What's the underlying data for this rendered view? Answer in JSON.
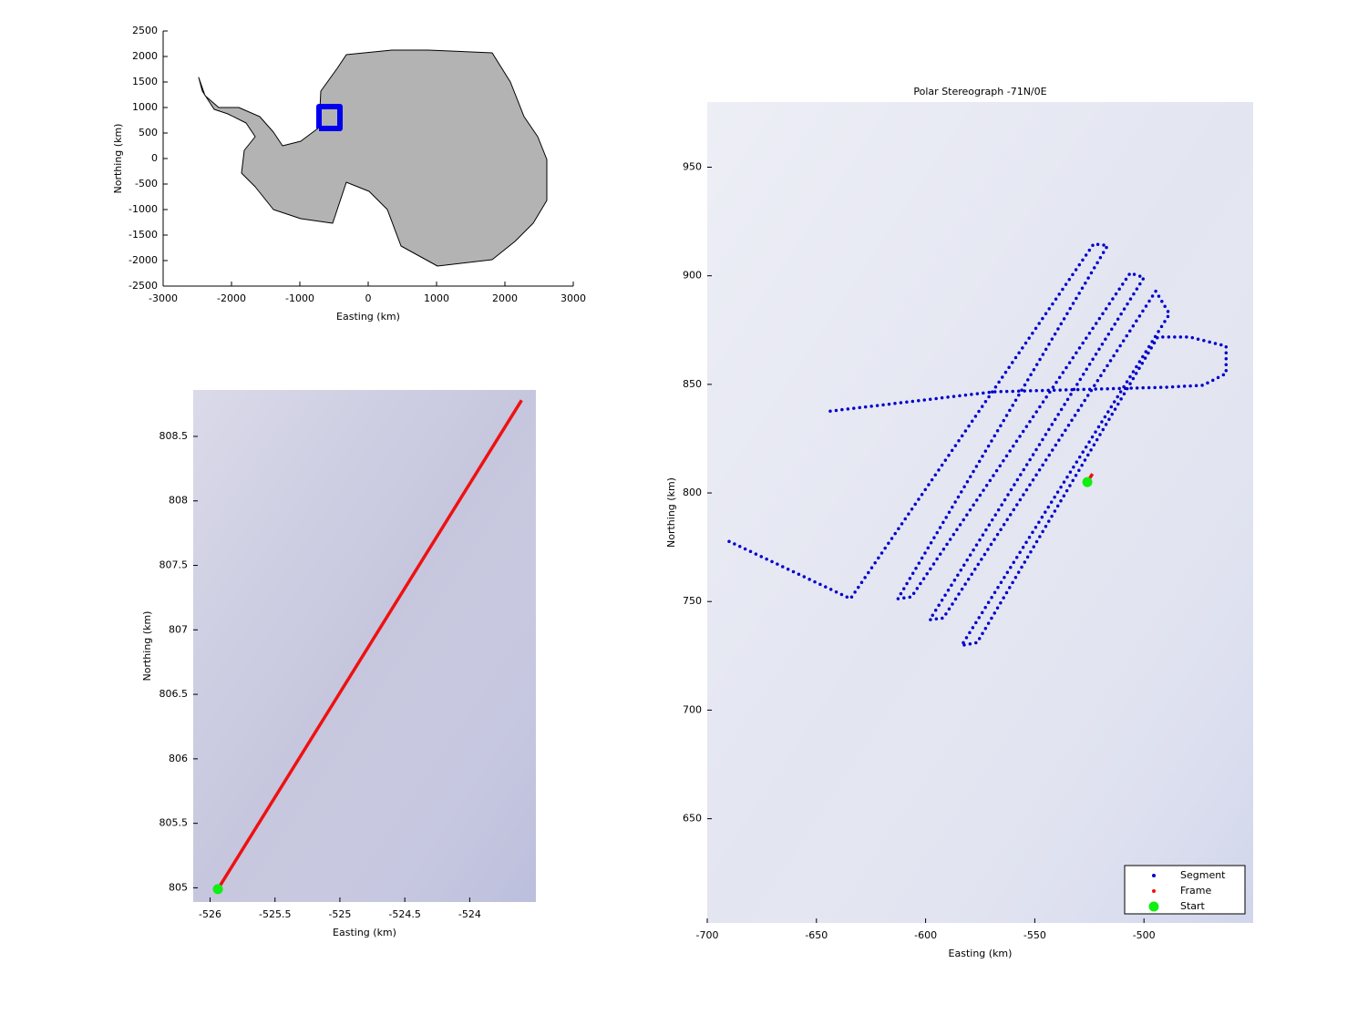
{
  "chart_data": [
    {
      "type": "map",
      "xlabel": "Easting (km)",
      "ylabel": "Northing (km)",
      "xlim": [
        -3000,
        3000
      ],
      "ylim": [
        -2500,
        2500
      ],
      "xticks": [
        -3000,
        -2000,
        -1000,
        0,
        1000,
        2000,
        3000
      ],
      "yticks": [
        -2500,
        -2000,
        -1500,
        -1000,
        -500,
        0,
        500,
        1000,
        1500,
        2000,
        2500
      ],
      "box": false,
      "background": "#ffffff",
      "series": [
        {
          "color": "#b3b3b3",
          "style": "fill",
          "x": [
            -2480,
            -2387,
            -2187,
            -1893,
            -1587,
            -1387,
            -1253,
            -987,
            -720,
            -693,
            -453,
            -320,
            347,
            880,
            1813,
            2080,
            2280,
            2480,
            2613,
            2613,
            2413,
            2147,
            1813,
            1013,
            480,
            280,
            13,
            -320,
            -520,
            -987,
            -1387,
            -1653,
            -1853,
            -1813,
            -1653,
            -1787,
            -2053,
            -2253,
            -2427
          ],
          "values": [
            1590,
            1232,
            1000,
            1000,
            821,
            518,
            250,
            339,
            607,
            1321,
            1768,
            2036,
            2125,
            2125,
            2071,
            1500,
            821,
            429,
            -18,
            -821,
            -1268,
            -1625,
            -1982,
            -2107,
            -1714,
            -1000,
            -643,
            -464,
            -1268,
            -1179,
            -1000,
            -554,
            -286,
            161,
            429,
            696,
            875,
            964,
            1321
          ]
        },
        {
          "color": "#0000ee",
          "style": "thick",
          "x": [
            -720,
            -413,
            -413,
            -720,
            -720
          ],
          "values": [
            590,
            590,
            1018,
            1018,
            590
          ]
        }
      ]
    },
    {
      "type": "map",
      "xlabel": "Easting (km)",
      "ylabel": "Northing (km)",
      "xlim": [
        -526.13,
        -523.49
      ],
      "ylim": [
        804.89,
        808.86
      ],
      "xticks": [
        -526,
        -525.5,
        -525,
        -524.5,
        -524
      ],
      "yticks": [
        805,
        805.5,
        806,
        806.5,
        807,
        807.5,
        808,
        808.5
      ],
      "box": true,
      "background": "#c6c6de",
      "series": [
        {
          "color": "#ee1111",
          "style": "line",
          "x": [
            -525.94,
            -523.6
          ],
          "values": [
            804.99,
            808.78
          ]
        },
        {
          "color": "#11ee11",
          "style": "marker",
          "x": [
            -525.94
          ],
          "values": [
            804.99
          ]
        }
      ]
    },
    {
      "type": "map",
      "title": "Polar Stereograph -71N/0E",
      "xlabel": "Easting (km)",
      "ylabel": "Northing (km)",
      "xlim": [
        -700,
        -450
      ],
      "ylim": [
        602,
        980
      ],
      "xticks": [
        -700,
        -650,
        -600,
        -550,
        -500
      ],
      "yticks": [
        650,
        700,
        750,
        800,
        850,
        900,
        950
      ],
      "box": true,
      "background": "#e3e5f1",
      "legend": "lower right",
      "series": [
        {
          "name": "Segment",
          "color": "#0000cc",
          "style": "dots",
          "x": [
            -690.0,
            -634.4,
            -523.0,
            -516.7,
            -612.7,
            -606.5,
            -506.3,
            -500.0,
            -598.1,
            -591.9,
            -494.6,
            -488.3,
            -583.5,
            -576.4,
            -493.7,
            -479.1,
            -462.4,
            -462.4,
            -472.9,
            -489.6,
            -568.9,
            -646.1
          ],
          "values": [
            777.7,
            751.3,
            914.7,
            913.9,
            751.3,
            752.1,
            901.3,
            899.2,
            741.6,
            742.4,
            892.9,
            882.4,
            729.8,
            731.1,
            871.8,
            871.8,
            867.6,
            855.0,
            849.6,
            848.7,
            846.6,
            837.4
          ]
        },
        {
          "name": "Frame",
          "color": "#ee1111",
          "style": "line",
          "x": [
            -525.94,
            -523.6
          ],
          "values": [
            804.99,
            808.78
          ]
        },
        {
          "name": "Start",
          "color": "#11ee11",
          "style": "marker",
          "x": [
            -525.94
          ],
          "values": [
            804.99
          ]
        }
      ]
    }
  ]
}
